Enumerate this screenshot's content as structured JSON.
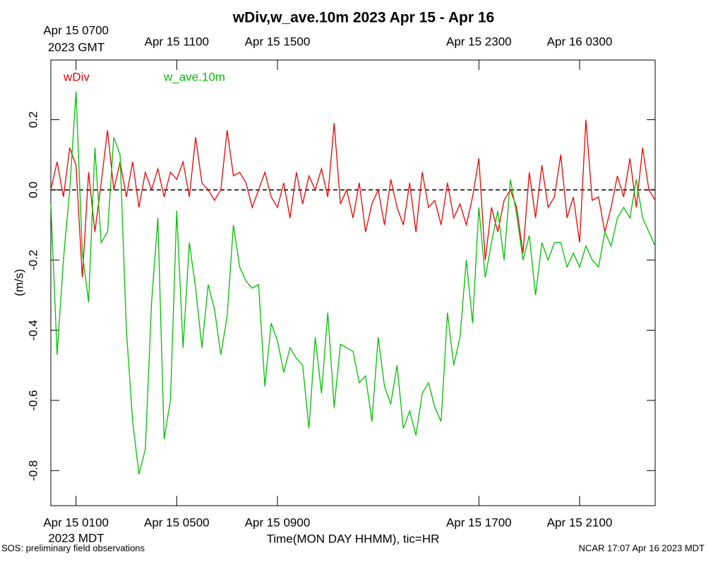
{
  "chart_data": {
    "type": "line",
    "title": "wDiv,w_ave.10m 2023 Apr 15 - Apr 16",
    "xlabel": "Time(MON DAY HHMM), tic=HR",
    "ylabel": "(m/s)",
    "x_timezone": "2023 MDT",
    "x2_timezone": "2023 GMT",
    "footer_left": "SOS: preliminary field observations",
    "footer_right": "NCAR 17:07 Apr 16 2023 MDT",
    "xlim": [
      0,
      24
    ],
    "xticks": [
      {
        "value": 1,
        "label": "Apr 15 0100"
      },
      {
        "value": 5,
        "label": "Apr 15 0500"
      },
      {
        "value": 9,
        "label": "Apr 15 0900"
      },
      {
        "value": 17,
        "label": "Apr 15 1700"
      },
      {
        "value": 21,
        "label": "Apr 15 2100"
      }
    ],
    "x2ticks": [
      {
        "value": 1,
        "label": "Apr 15 0700"
      },
      {
        "value": 5,
        "label": "Apr 15 1100"
      },
      {
        "value": 9,
        "label": "Apr 15 1500"
      },
      {
        "value": 17,
        "label": "Apr 15 2300"
      },
      {
        "value": 21,
        "label": "Apr 16 0300"
      }
    ],
    "ylim": [
      -0.9,
      0.37
    ],
    "yticks": [
      -0.8,
      -0.6,
      -0.4,
      -0.2,
      {
        "value": 0,
        "label": "0.0"
      },
      0.2
    ],
    "hline": 0,
    "x": [
      0,
      0.25,
      0.5,
      0.75,
      1,
      1.25,
      1.5,
      1.75,
      2,
      2.25,
      2.5,
      2.75,
      3,
      3.25,
      3.5,
      3.75,
      4,
      4.25,
      4.5,
      4.75,
      5,
      5.25,
      5.5,
      5.75,
      6,
      6.25,
      6.5,
      6.75,
      7,
      7.25,
      7.5,
      7.75,
      8,
      8.25,
      8.5,
      8.75,
      9,
      9.25,
      9.5,
      9.75,
      10,
      10.25,
      10.5,
      10.75,
      11,
      11.25,
      11.5,
      11.75,
      12,
      12.25,
      12.5,
      12.75,
      13,
      13.25,
      13.5,
      13.75,
      14,
      14.25,
      14.5,
      14.75,
      15,
      15.25,
      15.5,
      15.75,
      16,
      16.25,
      16.5,
      16.75,
      17,
      17.25,
      17.5,
      17.75,
      18,
      18.25,
      18.5,
      18.75,
      19,
      19.25,
      19.5,
      19.75,
      20,
      20.25,
      20.5,
      20.75,
      21,
      21.25,
      21.5,
      21.75,
      22,
      22.25,
      22.5,
      22.75,
      23,
      23.25,
      23.5,
      23.75,
      24
    ],
    "series": [
      {
        "name": "wDiv",
        "color": "#ee0000",
        "values": [
          0.0,
          0.08,
          -0.02,
          0.12,
          0.07,
          -0.25,
          0.05,
          -0.12,
          0.02,
          0.17,
          0.0,
          0.08,
          -0.02,
          0.08,
          -0.05,
          0.05,
          0.0,
          0.06,
          -0.02,
          0.05,
          0.03,
          0.08,
          -0.02,
          0.15,
          0.02,
          0.0,
          -0.03,
          0.0,
          0.17,
          0.04,
          0.05,
          0.02,
          -0.05,
          0.0,
          0.05,
          -0.02,
          -0.05,
          0.02,
          -0.08,
          0.05,
          -0.04,
          0.04,
          0.0,
          0.06,
          -0.02,
          0.19,
          -0.04,
          0.0,
          -0.08,
          0.02,
          -0.12,
          -0.04,
          0.0,
          -0.1,
          0.03,
          -0.05,
          -0.1,
          0.02,
          -0.12,
          0.05,
          -0.05,
          -0.03,
          -0.1,
          0.02,
          -0.08,
          -0.04,
          -0.1,
          -0.02,
          0.09,
          -0.2,
          -0.05,
          -0.12,
          -0.03,
          0.0,
          -0.05,
          -0.18,
          0.05,
          -0.08,
          0.07,
          -0.05,
          -0.02,
          0.1,
          -0.08,
          -0.02,
          -0.15,
          0.2,
          -0.03,
          -0.02,
          -0.12,
          -0.05,
          0.04,
          -0.02,
          0.09,
          -0.05,
          0.12,
          0.0,
          -0.03
        ]
      },
      {
        "name": "w_ave.10m",
        "color": "#00c000",
        "values": [
          -0.04,
          -0.47,
          -0.2,
          0.0,
          0.28,
          -0.18,
          -0.32,
          0.12,
          -0.15,
          -0.12,
          0.15,
          0.1,
          -0.4,
          -0.66,
          -0.81,
          -0.74,
          -0.32,
          -0.08,
          -0.71,
          -0.6,
          -0.06,
          -0.45,
          -0.15,
          -0.28,
          -0.45,
          -0.27,
          -0.34,
          -0.47,
          -0.36,
          -0.1,
          -0.22,
          -0.26,
          -0.28,
          -0.27,
          -0.56,
          -0.38,
          -0.43,
          -0.52,
          -0.45,
          -0.48,
          -0.5,
          -0.68,
          -0.42,
          -0.58,
          -0.35,
          -0.62,
          -0.44,
          -0.45,
          -0.46,
          -0.55,
          -0.53,
          -0.66,
          -0.42,
          -0.56,
          -0.61,
          -0.5,
          -0.68,
          -0.63,
          -0.7,
          -0.58,
          -0.55,
          -0.62,
          -0.66,
          -0.35,
          -0.5,
          -0.42,
          -0.2,
          -0.38,
          -0.05,
          -0.25,
          -0.15,
          -0.06,
          -0.2,
          0.03,
          -0.07,
          -0.2,
          -0.13,
          -0.3,
          -0.15,
          -0.2,
          -0.15,
          -0.15,
          -0.22,
          -0.18,
          -0.22,
          -0.16,
          -0.2,
          -0.22,
          -0.12,
          -0.16,
          -0.08,
          -0.05,
          -0.08,
          0.03,
          -0.08,
          -0.12,
          -0.16
        ]
      }
    ]
  }
}
